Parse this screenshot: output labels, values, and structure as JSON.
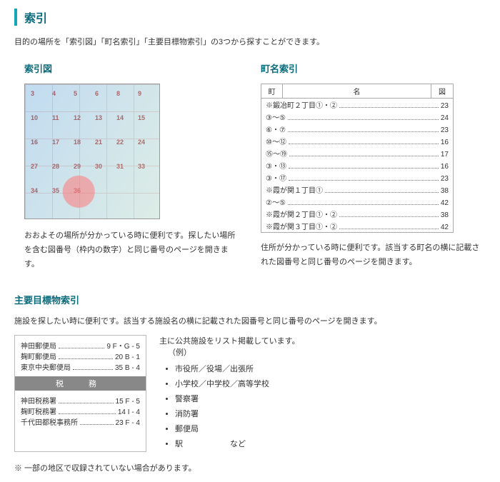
{
  "page": {
    "title": "索引",
    "intro": "目的の場所を「索引図」「町名索引」「主要目標物索引」の3つから探すことができます。"
  },
  "index_map": {
    "title": "索引図",
    "desc": "おおよその場所が分かっている時に便利です。探したい場所を含む図番号（枠内の数字）と同じ番号のページを開きます。",
    "grid_nums": [
      "3",
      "4",
      "5",
      "6",
      "8",
      "9",
      "10",
      "11",
      "12",
      "13",
      "14",
      "15",
      "16",
      "17",
      "18",
      "21",
      "22",
      "24",
      "27",
      "28",
      "29",
      "30",
      "31",
      "33",
      "34",
      "35",
      "36"
    ]
  },
  "town_index": {
    "title": "町名索引",
    "header": {
      "c1": "町",
      "c2": "名",
      "c3": "図"
    },
    "rows": [
      {
        "label": "※鍛冶町２丁目①・②",
        "num": "23"
      },
      {
        "label": "③～⑤",
        "num": "24"
      },
      {
        "label": "⑥・⑦",
        "num": "23"
      },
      {
        "label": "⑩～⑫",
        "num": "16"
      },
      {
        "label": "⑮～⑲",
        "num": "17"
      },
      {
        "label": "③・⑬",
        "num": "16"
      },
      {
        "label": "③・⑰",
        "num": "23"
      },
      {
        "label": "※霞が関１丁目①",
        "num": "38"
      },
      {
        "label": "②～⑤",
        "num": "42"
      },
      {
        "label": "※霞が関２丁目①・②",
        "num": "38"
      },
      {
        "label": "※霞が関３丁目①・②",
        "num": "42"
      }
    ],
    "desc": "住所が分かっている時に便利です。該当する町名の横に記載された図番号と同じ番号のページを開きます。"
  },
  "landmark_index": {
    "title": "主要目標物索引",
    "desc": "施設を探したい時に便利です。該当する施設名の横に記載された図番号と同じ番号のページを開きます。",
    "post": {
      "lines_top": [
        {
          "label": "神田郵便局",
          "num": "9  F・G - 5"
        },
        {
          "label": "麹町郵便局",
          "num": "20  B - 1"
        },
        {
          "label": "東京中央郵便局",
          "num": "35  B - 4"
        }
      ],
      "band": "税　務",
      "lines_bottom": [
        {
          "label": "神田税務署",
          "num": "15  F - 5"
        },
        {
          "label": "麹町税務署",
          "num": "14  I - 4"
        },
        {
          "label": "千代田都税事務所",
          "num": "23  F - 4"
        }
      ]
    },
    "right": {
      "lead": "主に公共施設をリスト掲載しています。",
      "sub": "（例）",
      "items": [
        "市役所／役場／出張所",
        "小学校／中学校／高等学校",
        "警察署",
        "消防署",
        "郵便局",
        "駅　　　　　　など"
      ]
    },
    "footnote": "※ 一部の地区で収録されていない場合があります。"
  }
}
